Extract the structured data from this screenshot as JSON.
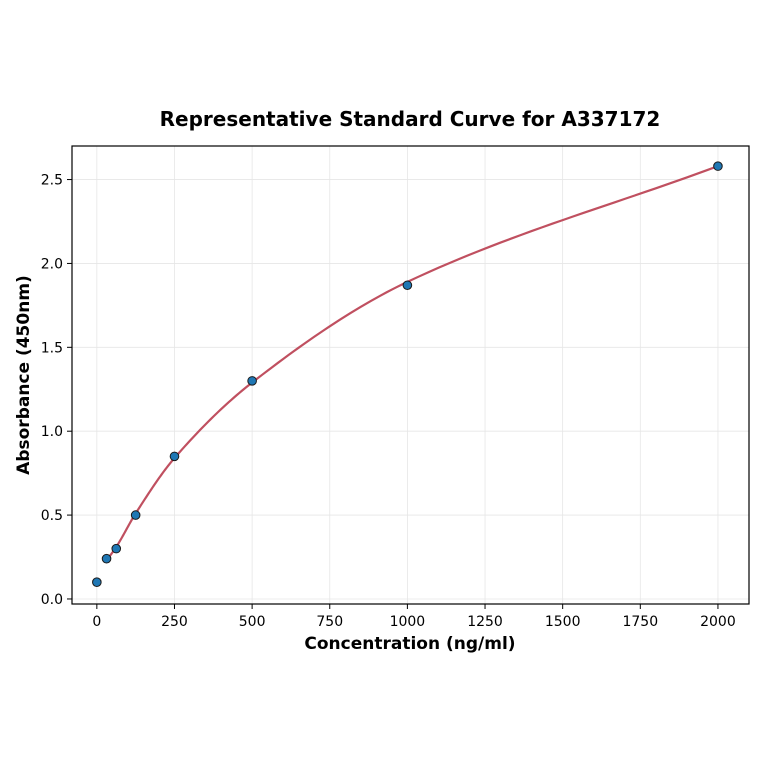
{
  "chart_data": {
    "type": "scatter",
    "title": "Representative Standard Curve for A337172",
    "xlabel": "Concentration (ng/ml)",
    "ylabel": "Absorbance (450nm)",
    "xlim": [
      -80,
      2100
    ],
    "ylim": [
      -0.03,
      2.7
    ],
    "xticks": [
      0,
      250,
      500,
      750,
      1000,
      1250,
      1500,
      1750,
      2000
    ],
    "yticks": [
      0.0,
      0.5,
      1.0,
      1.5,
      2.0,
      2.5
    ],
    "xtick_labels": [
      "0",
      "250",
      "500",
      "750",
      "1000",
      "1250",
      "1500",
      "1750",
      "2000"
    ],
    "ytick_labels": [
      "0.0",
      "0.5",
      "1.0",
      "1.5",
      "2.0",
      "2.5"
    ],
    "grid": true,
    "points": {
      "x": [
        0,
        31.25,
        62.5,
        125,
        250,
        500,
        1000,
        2000
      ],
      "y": [
        0.1,
        0.24,
        0.3,
        0.5,
        0.85,
        1.3,
        1.87,
        2.58
      ],
      "color": "#1f77b4"
    },
    "fit_curve": {
      "x": [
        31.25,
        62.5,
        125,
        250,
        500,
        1000,
        2000
      ],
      "y": [
        0.23,
        0.31,
        0.51,
        0.84,
        1.29,
        1.89,
        2.58
      ],
      "color": "#c05060"
    }
  }
}
